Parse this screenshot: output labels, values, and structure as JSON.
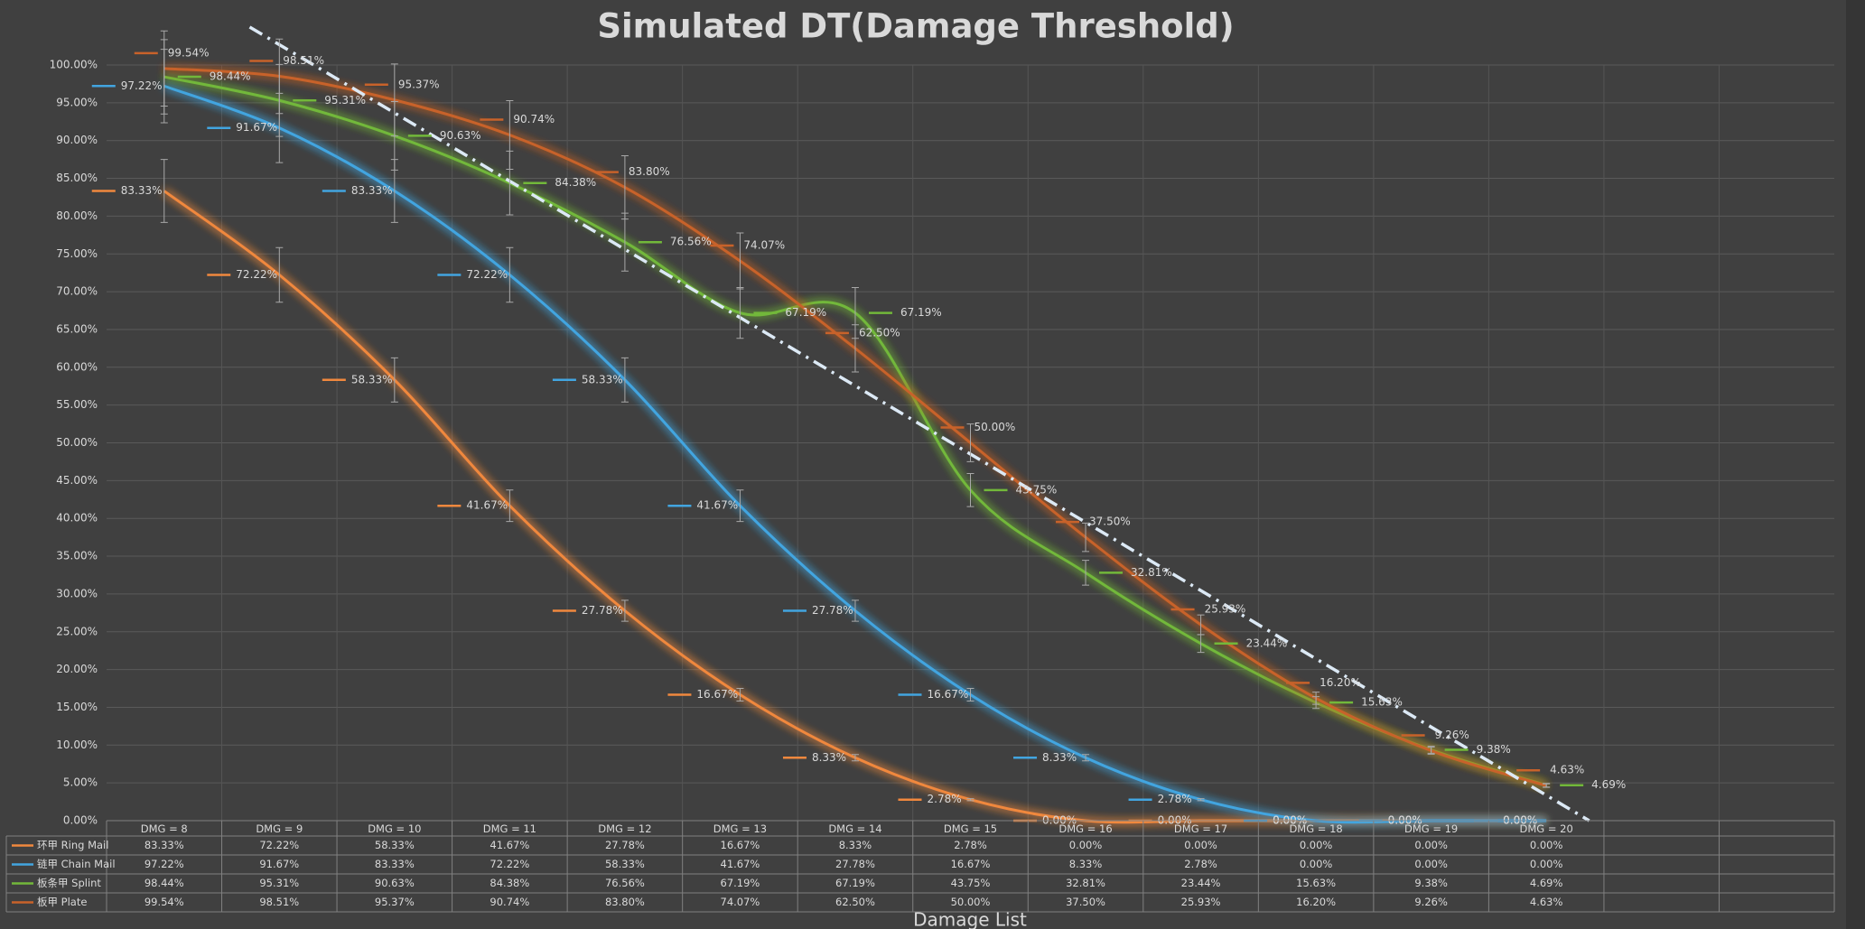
{
  "chart_data": {
    "type": "line",
    "title": "Simulated DT(Damage Threshold)",
    "x_label": "Damage List",
    "categories": [
      "DMG = 8",
      "DMG = 9",
      "DMG = 10",
      "DMG = 11",
      "DMG = 12",
      "DMG = 13",
      "DMG = 14",
      "DMG = 15",
      "DMG = 16",
      "DMG = 17",
      "DMG = 18",
      "DMG = 19",
      "DMG = 20",
      null,
      null
    ],
    "series": [
      {
        "name": "环甲 Ring Mail",
        "color": "#f0883e",
        "values": [
          83.33,
          72.22,
          58.33,
          41.67,
          27.78,
          16.67,
          8.33,
          2.78,
          0,
          0,
          0,
          0,
          0,
          null,
          null
        ],
        "value_labels": [
          "83.33%",
          "72.22%",
          "58.33%",
          "41.67%",
          "27.78%",
          "16.67%",
          "8.33%",
          "2.78%",
          "0.00%",
          "0.00%",
          "0.00%",
          "0.00%",
          "0.00%",
          null,
          null
        ]
      },
      {
        "name": "链甲 Chain Mail",
        "color": "#42a5e0",
        "values": [
          97.22,
          91.67,
          83.33,
          72.22,
          58.33,
          41.67,
          27.78,
          16.67,
          8.33,
          2.78,
          0,
          0,
          0,
          null,
          null
        ],
        "value_labels": [
          "97.22%",
          "91.67%",
          "83.33%",
          "72.22%",
          "58.33%",
          "41.67%",
          "27.78%",
          "16.67%",
          "8.33%",
          "2.78%",
          "0.00%",
          "0.00%",
          "0.00%",
          null,
          null
        ]
      },
      {
        "name": "板条甲 Splint",
        "color": "#72b83a",
        "values": [
          98.44,
          95.31,
          90.63,
          84.38,
          76.56,
          67.19,
          67.19,
          43.75,
          32.81,
          23.44,
          15.63,
          9.38,
          4.69,
          null,
          null
        ],
        "value_labels": [
          "98.44%",
          "95.31%",
          "90.63%",
          "84.38%",
          "76.56%",
          "67.19%",
          "67.19%",
          "43.75%",
          "32.81%",
          "23.44%",
          "15.63%",
          "9.38%",
          "4.69%",
          null,
          null
        ]
      },
      {
        "name": "板甲 Plate",
        "color": "#c8622a",
        "values": [
          99.54,
          98.51,
          95.37,
          90.74,
          83.8,
          74.07,
          62.5,
          50.0,
          37.5,
          25.93,
          16.2,
          9.26,
          4.63,
          null,
          null
        ],
        "value_labels": [
          "99.54%",
          "98.51%",
          "95.37%",
          "90.74%",
          "83.80%",
          "74.07%",
          "62.50%",
          "50.00%",
          "37.50%",
          "25.93%",
          "16.20%",
          "9.26%",
          "4.63%",
          null,
          null
        ]
      }
    ],
    "ylim": [
      0,
      100
    ],
    "yticks": [
      {
        "value": 0,
        "label": "0.00%"
      },
      {
        "value": 5,
        "label": "5.00%"
      },
      {
        "value": 10,
        "label": "10.00%"
      },
      {
        "value": 15,
        "label": "15.00%"
      },
      {
        "value": 20,
        "label": "20.00%"
      },
      {
        "value": 25,
        "label": "25.00%"
      },
      {
        "value": 30,
        "label": "30.00%"
      },
      {
        "value": 35,
        "label": "35.00%"
      },
      {
        "value": 40,
        "label": "40.00%"
      },
      {
        "value": 45,
        "label": "45.00%"
      },
      {
        "value": 50,
        "label": "50.00%"
      },
      {
        "value": 55,
        "label": "55.00%"
      },
      {
        "value": 60,
        "label": "60.00%"
      },
      {
        "value": 65,
        "label": "65.00%"
      },
      {
        "value": 70,
        "label": "70.00%"
      },
      {
        "value": 75,
        "label": "75.00%"
      },
      {
        "value": 80,
        "label": "80.00%"
      },
      {
        "value": 85,
        "label": "85.00%"
      },
      {
        "value": 90,
        "label": "90.00%"
      },
      {
        "value": 95,
        "label": "95.00%"
      },
      {
        "value": 100,
        "label": "100.00%"
      }
    ],
    "grid": true,
    "smooth": true,
    "error_percent": 5,
    "trendline": {
      "series": 3,
      "type": "linear",
      "color": "#dce9f5"
    },
    "data_table": true
  }
}
